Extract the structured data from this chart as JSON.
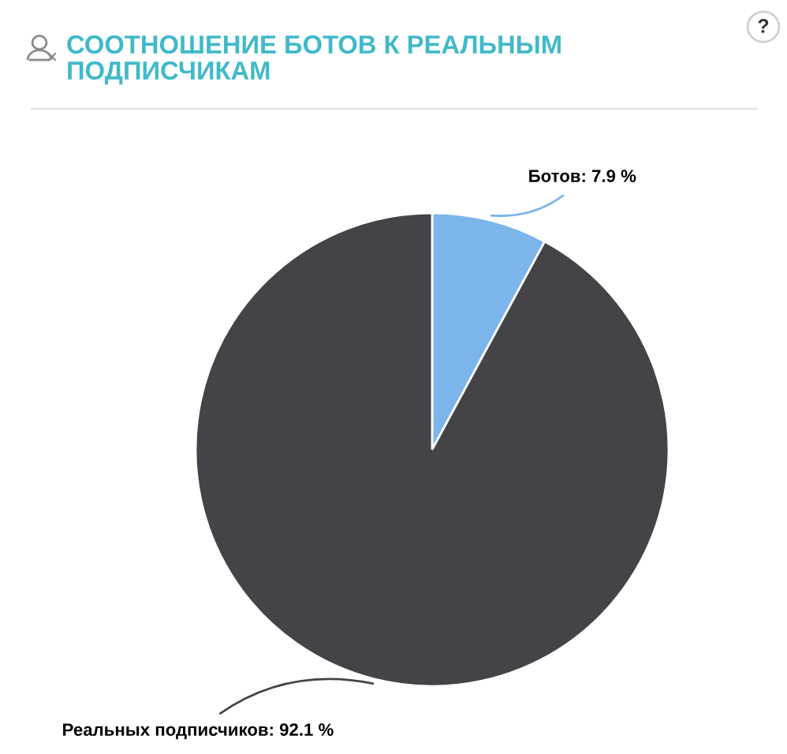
{
  "chart_data": {
    "type": "pie",
    "title": "СООТНОШЕНИЕ БОТОВ К РЕАЛЬНЫМ\nПОДПИСЧИКАМ",
    "categories": [
      "Ботов",
      "Реальных подписчиков"
    ],
    "values": [
      7.9,
      92.1
    ],
    "colors": [
      "#7cb5ec",
      "#434348"
    ],
    "value_labels": [
      "7.9 %",
      "92.1 %"
    ],
    "legend": false,
    "annotations": [
      "?"
    ]
  }
}
